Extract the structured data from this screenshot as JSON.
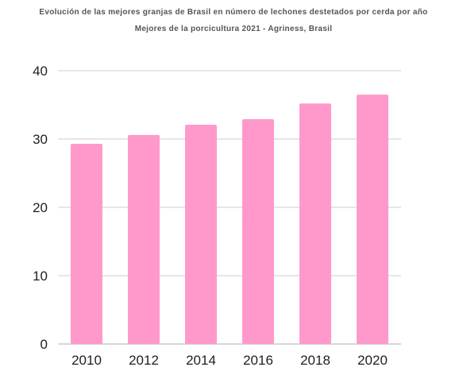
{
  "chart_data": {
    "type": "bar",
    "title": "Evolución de las mejores granjas de Brasil en número de lechones  destetados por cerda por año",
    "subtitle": "Mejores de la porcicultura 2021 - Agriness, Brasil",
    "categories": [
      "2010",
      "2012",
      "2014",
      "2016",
      "2018",
      "2020"
    ],
    "values": [
      29.3,
      30.6,
      32.1,
      32.9,
      35.2,
      36.5
    ],
    "xlabel": "",
    "ylabel": "",
    "ylim": [
      0,
      40
    ],
    "yticks": [
      "0",
      "10",
      "20",
      "30",
      "40"
    ],
    "grid": true,
    "legend": "none",
    "colors": {
      "bar": "#ff99cc",
      "grid": "#cccccc",
      "text": "#1f1f1f",
      "title": "#555555"
    }
  }
}
